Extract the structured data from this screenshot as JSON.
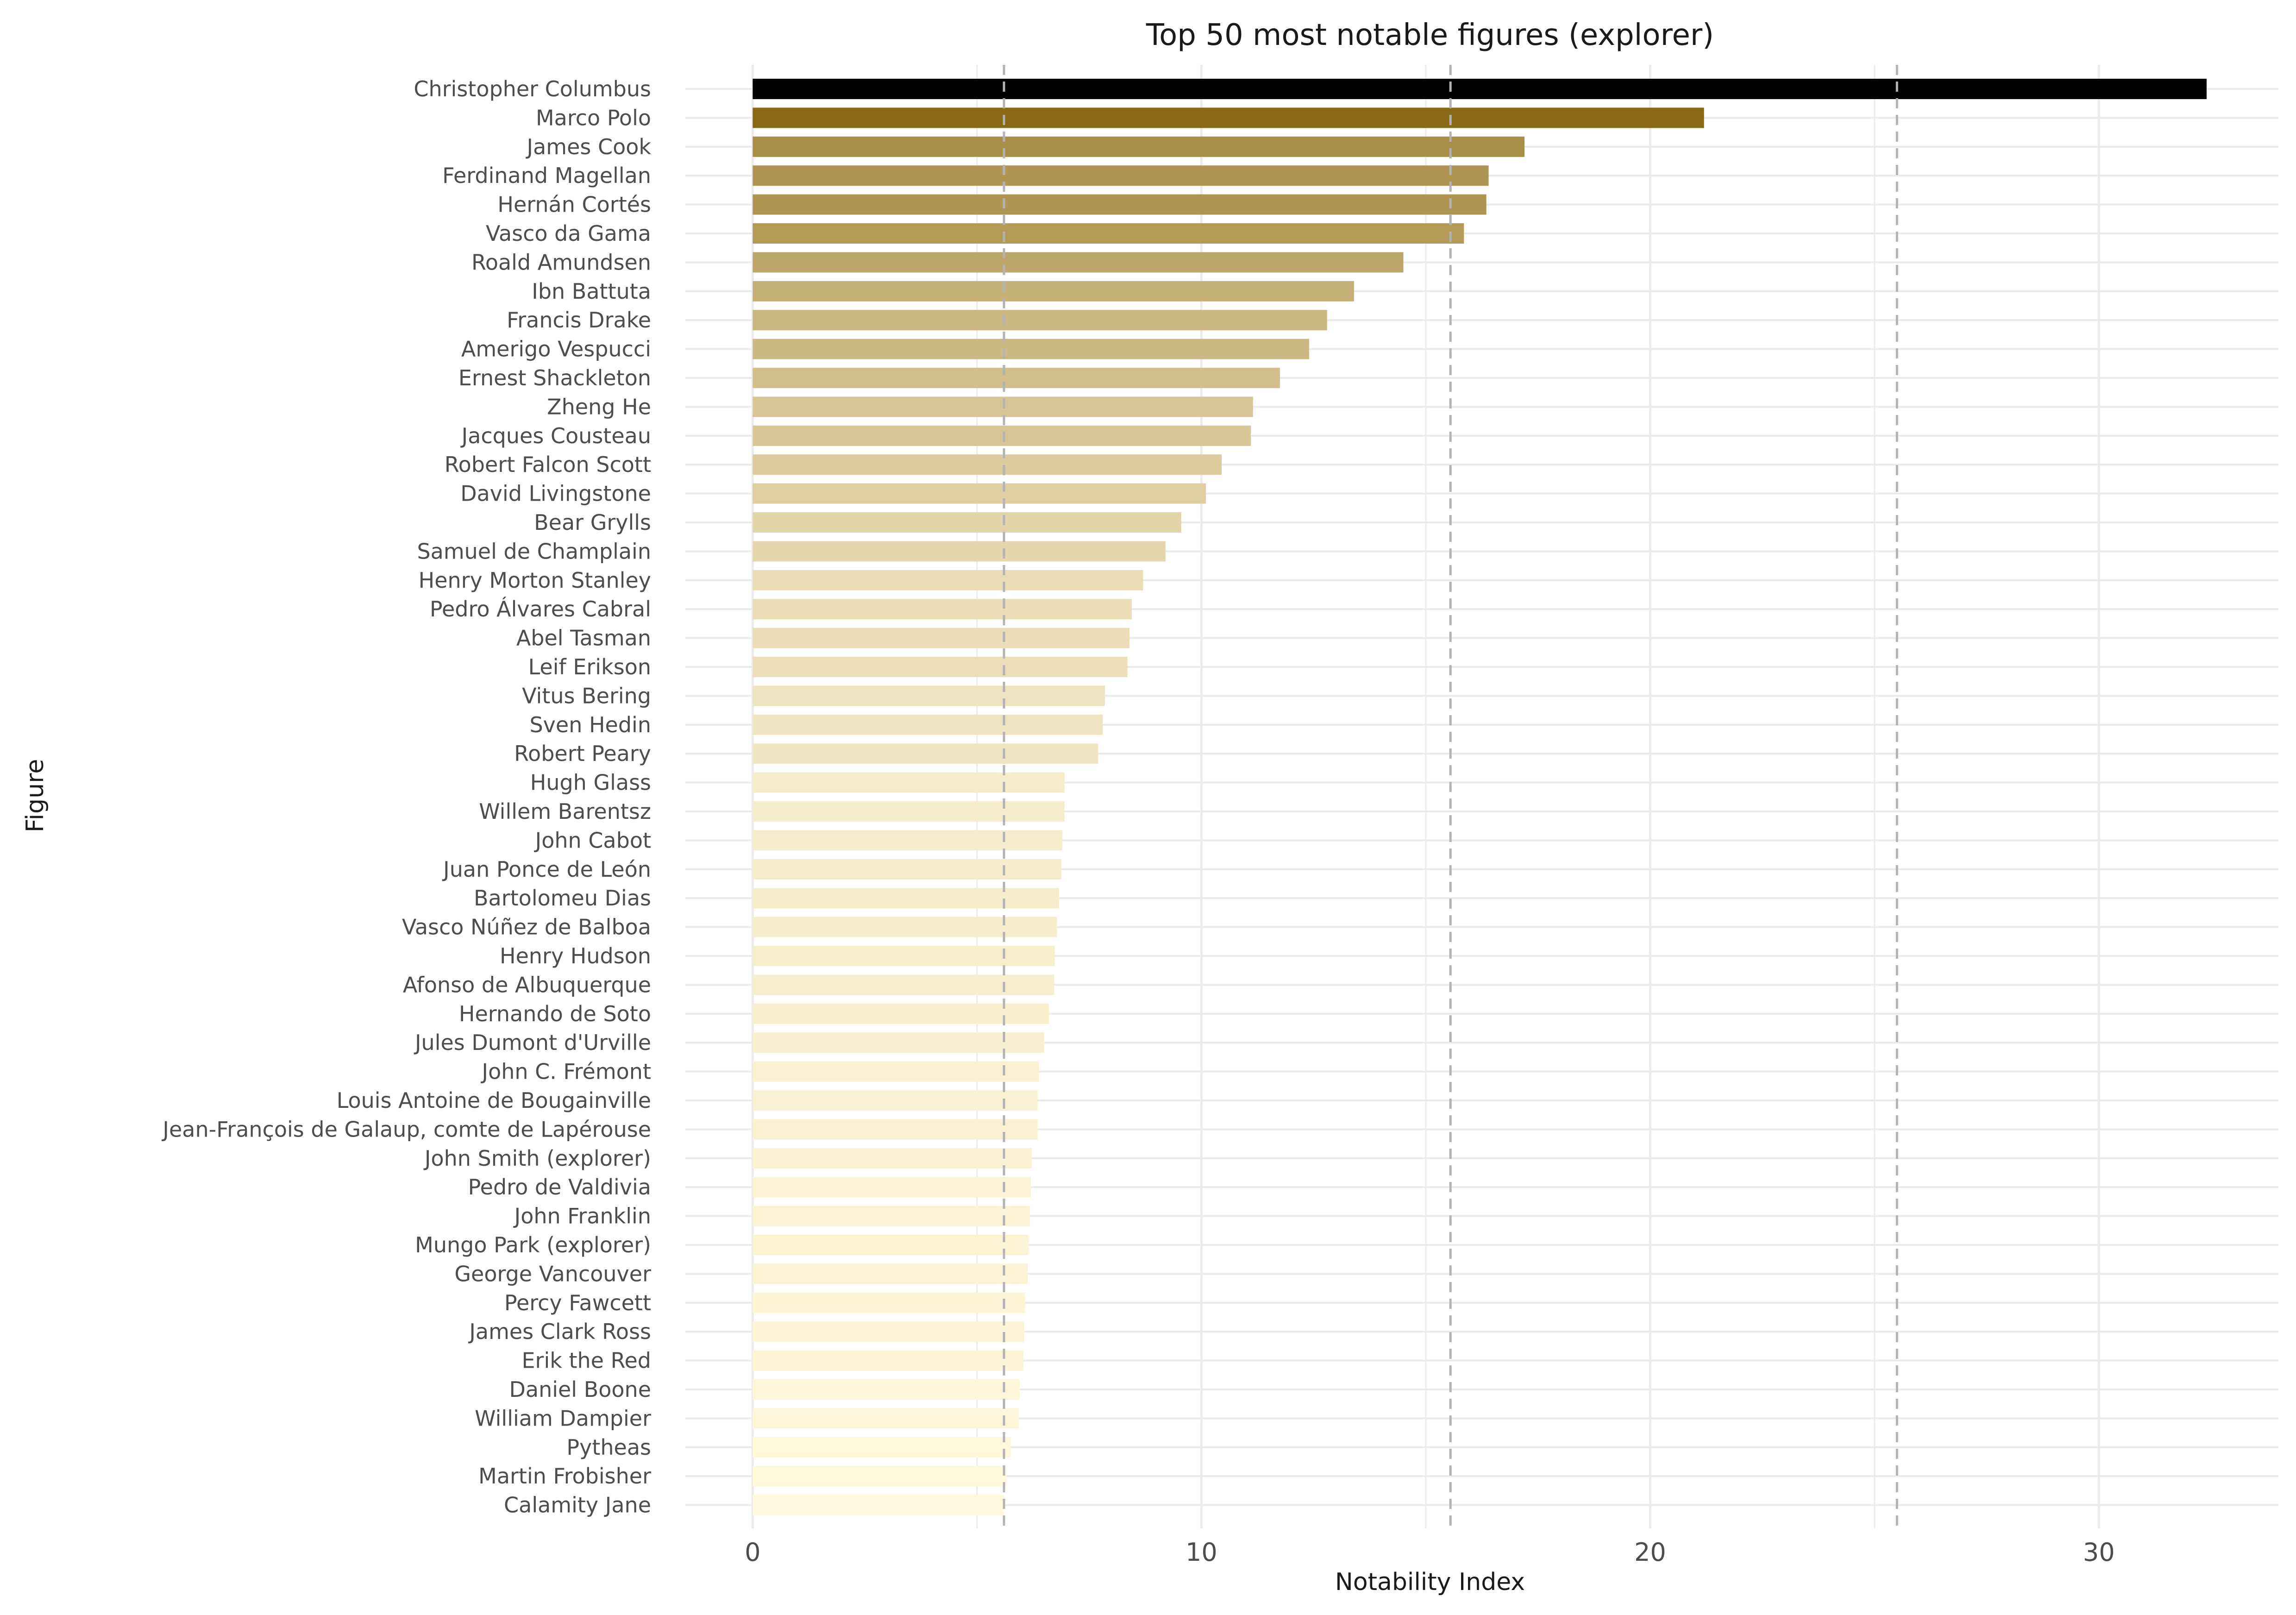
{
  "chart_data": {
    "type": "bar",
    "orientation": "horizontal",
    "title": "Top 50 most notable figures (explorer)",
    "xlabel": "Notability Index",
    "ylabel": "Figure",
    "xlim": [
      -1.5,
      34
    ],
    "xticks": [
      0,
      10,
      20,
      30
    ],
    "reference_lines": [
      5.6,
      15.55,
      25.5
    ],
    "grid": true,
    "legend": "none",
    "colors": {
      "max": "#000000",
      "high": "#8b6914",
      "low": "#fff8dc",
      "reference": "#b3b3b3",
      "grid": "#ebebeb"
    },
    "categories": [
      "Christopher Columbus",
      "Marco Polo",
      "James Cook",
      "Ferdinand Magellan",
      "Hernán Cortés",
      "Vasco da Gama",
      "Roald Amundsen",
      "Ibn Battuta",
      "Francis Drake",
      "Amerigo Vespucci",
      "Ernest Shackleton",
      "Zheng He",
      "Jacques Cousteau",
      "Robert Falcon Scott",
      "David Livingstone",
      "Bear Grylls",
      "Samuel de Champlain",
      "Henry Morton Stanley",
      "Pedro Álvares Cabral",
      "Abel Tasman",
      "Leif Erikson",
      "Vitus Bering",
      "Sven Hedin",
      "Robert Peary",
      "Hugh Glass",
      "Willem Barentsz",
      "John Cabot",
      "Juan Ponce de León",
      "Bartolomeu Dias",
      "Vasco Núñez de Balboa",
      "Henry Hudson",
      "Afonso de Albuquerque",
      "Hernando de Soto",
      "Jules Dumont d'Urville",
      "John C. Frémont",
      "Louis Antoine de Bougainville",
      "Jean-François de Galaup, comte de Lapérouse",
      "John Smith (explorer)",
      "Pedro de Valdivia",
      "John Franklin",
      "Mungo Park (explorer)",
      "George Vancouver",
      "Percy Fawcett",
      "James Clark Ross",
      "Erik the Red",
      "Daniel Boone",
      "William Dampier",
      "Pytheas",
      "Martin Frobisher",
      "Calamity Jane"
    ],
    "values": [
      32.4,
      21.2,
      17.2,
      16.4,
      16.35,
      15.85,
      14.5,
      13.4,
      12.8,
      12.4,
      11.75,
      11.15,
      11.1,
      10.45,
      10.1,
      9.55,
      9.2,
      8.7,
      8.45,
      8.4,
      8.35,
      7.85,
      7.8,
      7.7,
      6.95,
      6.95,
      6.9,
      6.88,
      6.83,
      6.78,
      6.73,
      6.72,
      6.6,
      6.5,
      6.38,
      6.35,
      6.35,
      6.22,
      6.2,
      6.18,
      6.15,
      6.13,
      6.07,
      6.05,
      6.03,
      5.95,
      5.93,
      5.75,
      5.65,
      5.6
    ]
  }
}
